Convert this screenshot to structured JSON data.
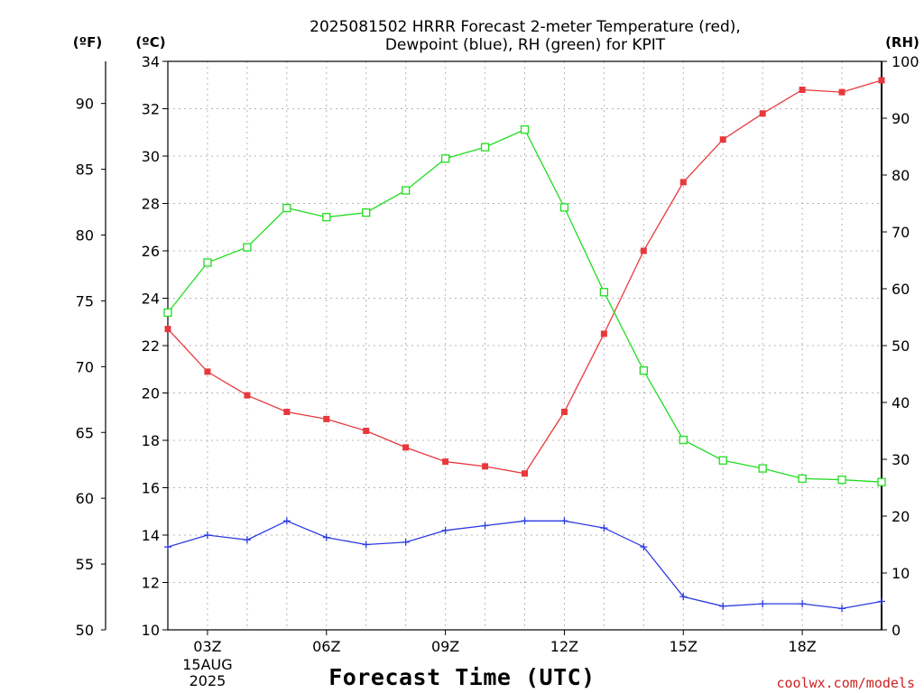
{
  "chart_data": {
    "type": "line",
    "title_line1": "2025081502 HRRR Forecast 2-meter Temperature (red),",
    "title_line2": "Dewpoint (blue), RH (green) for KPIT",
    "xlabel": "Forecast Time (UTC)",
    "credit": "coolwx.com/models",
    "unit_labels": {
      "fahrenheit": "(ºF)",
      "celsius": "(ºC)",
      "rh": "(RH)"
    },
    "x_hours": [
      2,
      3,
      4,
      5,
      6,
      7,
      8,
      9,
      10,
      11,
      12,
      13,
      14,
      15,
      16,
      17,
      18,
      19,
      20
    ],
    "x_ticks": [
      {
        "hour": 3,
        "label": "03Z",
        "sub1": "15AUG",
        "sub2": "2025"
      },
      {
        "hour": 6,
        "label": "06Z"
      },
      {
        "hour": 9,
        "label": "09Z"
      },
      {
        "hour": 12,
        "label": "12Z"
      },
      {
        "hour": 15,
        "label": "15Z"
      },
      {
        "hour": 18,
        "label": "18Z"
      }
    ],
    "xlim": [
      2,
      20
    ],
    "ylim_celsius": [
      10,
      34
    ],
    "ylim_fahrenheit": [
      50,
      93.2
    ],
    "ylim_rh": [
      0,
      100
    ],
    "celsius_ticks": [
      10,
      12,
      14,
      16,
      18,
      20,
      22,
      24,
      26,
      28,
      30,
      32,
      34
    ],
    "fahrenheit_ticks": [
      50,
      55,
      60,
      65,
      70,
      75,
      80,
      85,
      90
    ],
    "rh_ticks": [
      0,
      10,
      20,
      30,
      40,
      50,
      60,
      70,
      80,
      90,
      100
    ],
    "grid": true,
    "series": [
      {
        "name": "Temperature",
        "axis": "celsius",
        "color": "#e8383c",
        "marker": "filled-square",
        "values": [
          22.7,
          20.9,
          19.9,
          19.2,
          18.9,
          18.4,
          17.7,
          17.1,
          16.9,
          16.6,
          19.2,
          22.5,
          26.0,
          28.9,
          30.7,
          31.8,
          32.8,
          32.7,
          33.2
        ]
      },
      {
        "name": "Dewpoint",
        "axis": "celsius",
        "color": "#2b3be0",
        "marker": "plus",
        "values": [
          13.5,
          14.0,
          13.8,
          14.6,
          13.9,
          13.6,
          13.7,
          14.2,
          14.4,
          14.6,
          14.6,
          14.3,
          13.5,
          11.4,
          11.0,
          11.1,
          11.1,
          10.9,
          11.2
        ]
      },
      {
        "name": "RH",
        "axis": "rh",
        "color": "#22dd22",
        "marker": "open-square",
        "values": [
          55.8,
          64.6,
          67.3,
          74.2,
          72.6,
          73.4,
          77.3,
          82.9,
          84.9,
          88.0,
          74.3,
          59.4,
          45.6,
          33.4,
          29.8,
          28.4,
          26.6,
          26.4,
          26.0
        ]
      }
    ]
  }
}
